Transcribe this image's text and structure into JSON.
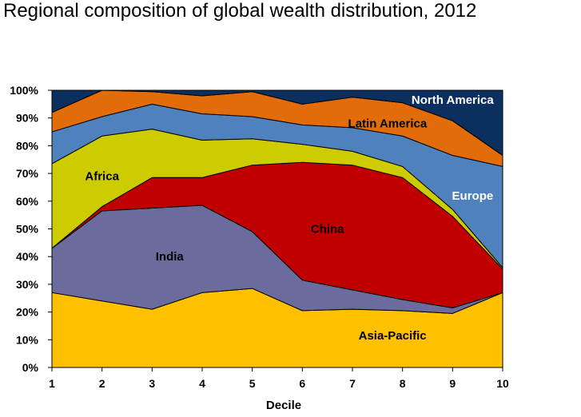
{
  "chart_data": {
    "type": "area",
    "stacked": true,
    "title": "Regional composition of global wealth distribution, 2012",
    "xlabel": "Decile",
    "ylabel": "",
    "x": [
      1,
      2,
      3,
      4,
      5,
      6,
      7,
      8,
      9,
      10
    ],
    "ylim": [
      0,
      100
    ],
    "yticks": [
      "0%",
      "10%",
      "20%",
      "30%",
      "40%",
      "50%",
      "60%",
      "70%",
      "80%",
      "90%",
      "100%"
    ],
    "grid": false,
    "legend": "none",
    "series": [
      {
        "name": "Asia-Pacific",
        "color": "#FFC000",
        "label_color": "#000000",
        "values": [
          27,
          24,
          21,
          27,
          28.5,
          20.5,
          21,
          20.5,
          19.5,
          27
        ]
      },
      {
        "name": "India",
        "color": "#6B6B9E",
        "label_color": "#000000",
        "values": [
          16,
          32.5,
          36.5,
          31.5,
          20.5,
          11,
          7,
          4,
          2,
          0
        ]
      },
      {
        "name": "China",
        "color": "#C00000",
        "label_color": "#000000",
        "values": [
          0,
          1.5,
          11,
          10,
          24,
          42.5,
          45,
          44,
          33,
          8.5
        ]
      },
      {
        "name": "Africa",
        "color": "#CCCC00",
        "label_color": "#000000",
        "values": [
          30.5,
          25.5,
          17.5,
          13.5,
          9.5,
          6.5,
          5,
          4,
          2.5,
          0.5
        ]
      },
      {
        "name": "Europe",
        "color": "#4F81BD",
        "label_color": "#FFFFFF",
        "values": [
          11.5,
          7,
          9,
          9.5,
          8,
          7,
          8.5,
          11,
          19.5,
          36.5
        ]
      },
      {
        "name": "Latin America",
        "color": "#E36C0A",
        "label_color": "#000000",
        "values": [
          7,
          9.5,
          4.5,
          6.5,
          9,
          7.5,
          11,
          12,
          12.5,
          4
        ]
      },
      {
        "name": "North America",
        "color": "#0B2F5E",
        "label_color": "#FFFFFF",
        "values": [
          8,
          0,
          0.5,
          2,
          0.5,
          5,
          2.5,
          4.5,
          11,
          23.5
        ]
      }
    ]
  }
}
